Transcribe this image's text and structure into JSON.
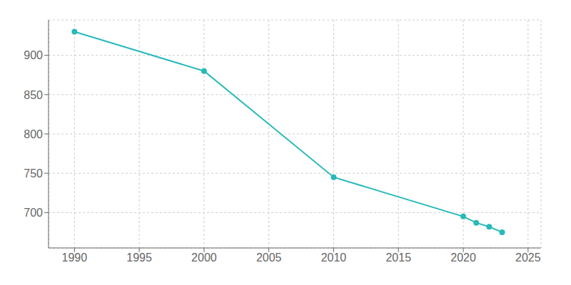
{
  "chart_data": {
    "type": "line",
    "x": [
      1990,
      2000,
      2010,
      2020,
      2021,
      2022,
      2023
    ],
    "values": [
      930,
      880,
      745,
      695,
      687,
      682,
      675
    ],
    "color": "#29b9b9",
    "marker": "o",
    "xlim": [
      1988,
      2026
    ],
    "ylim": [
      655,
      945
    ],
    "xticks": [
      1990,
      1995,
      2000,
      2005,
      2010,
      2015,
      2020,
      2025
    ],
    "yticks": [
      700,
      750,
      800,
      850,
      900
    ],
    "grid": true
  }
}
